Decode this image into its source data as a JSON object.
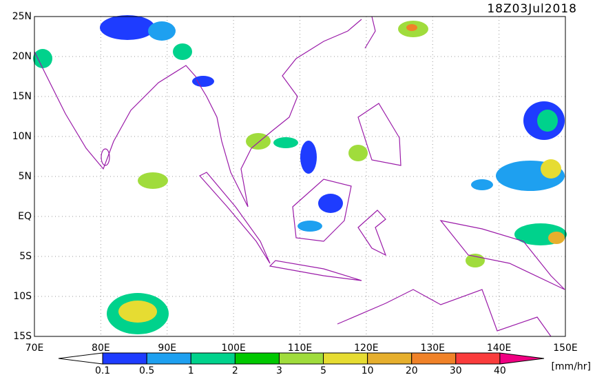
{
  "title": "18Z03Jul2018",
  "lat_labels": [
    "25N",
    "20N",
    "15N",
    "10N",
    "5N",
    "EQ",
    "5S",
    "10S",
    "15S"
  ],
  "lon_labels": [
    "70E",
    "80E",
    "90E",
    "100E",
    "110E",
    "120E",
    "130E",
    "140E",
    "150E"
  ],
  "colorbar": {
    "labels": [
      "0.1",
      "0.5",
      "1",
      "2",
      "3",
      "5",
      "10",
      "20",
      "30",
      "40"
    ],
    "colors": [
      "#ffffff",
      "#1e3cff",
      "#1ea0f0",
      "#00d28c",
      "#00c800",
      "#a0dc3c",
      "#e6dc32",
      "#e6af2d",
      "#f08228",
      "#fa3c3c",
      "#f00082"
    ],
    "units": "[mm/hr]"
  }
}
